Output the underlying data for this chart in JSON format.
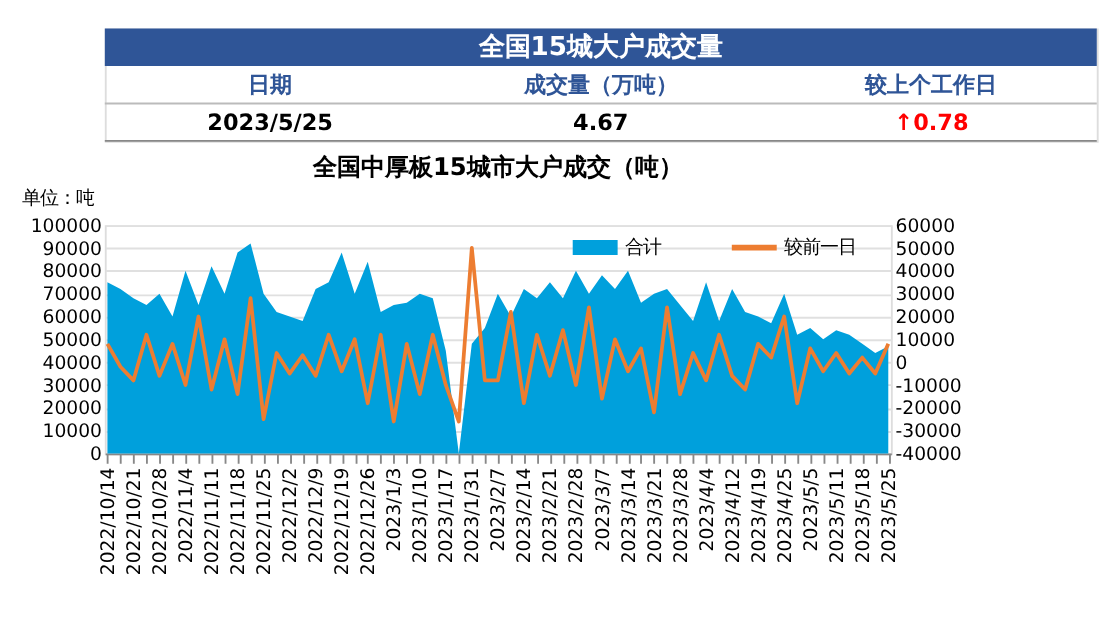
{
  "chart_data": [
    {
      "type": "other",
      "title": "全国15城大户成交量",
      "color": "#2f5597",
      "annotations": [
        "日期",
        "成交量（万吨）",
        "较上个工作日",
        "2023/5/25",
        "4.67",
        "↑0.78"
      ],
      "colors": [
        "#2f5597",
        "#2f5597",
        "#2f5597",
        "#000000",
        "#000000",
        "#ff0000"
      ]
    },
    {
      "type": "area",
      "title": "全国中厚板15城市大户成交（吨）",
      "ylabel": "单位：吨",
      "categories": [
        "2022/10/14",
        null,
        "2022/10/21",
        null,
        "2022/10/28",
        null,
        "2022/11/4",
        null,
        "2022/11/11",
        null,
        "2022/11/18",
        null,
        "2022/11/25",
        null,
        "2022/12/2",
        null,
        "2022/12/9",
        null,
        "2022/12/19",
        null,
        "2022/12/26",
        null,
        "2023/1/3",
        null,
        "2023/1/10",
        null,
        "2023/1/17",
        null,
        "2023/1/31",
        null,
        "2023/2/7",
        null,
        "2023/2/14",
        null,
        "2023/2/21",
        null,
        "2023/2/28",
        null,
        "2023/3/7",
        null,
        "2023/3/14",
        null,
        "2023/3/21",
        null,
        "2023/3/28",
        null,
        "2023/4/4",
        null,
        "2023/4/12",
        null,
        "2023/4/19",
        null,
        "2023/4/25",
        null,
        "2023/5/5",
        null,
        "2023/5/11",
        null,
        "2023/5/18",
        null,
        "2023/5/25"
      ],
      "series": [
        {
          "name": "合计",
          "type": "area",
          "color": "#00a0dc",
          "values": [
            75000,
            72000,
            68000,
            65000,
            70000,
            60000,
            80000,
            65000,
            82000,
            70000,
            88000,
            92000,
            70000,
            62000,
            60000,
            58000,
            72000,
            75000,
            88000,
            70000,
            84000,
            62000,
            65000,
            66000,
            70000,
            68000,
            45000,
            0,
            48000,
            55000,
            70000,
            60000,
            72000,
            68000,
            75000,
            68000,
            80000,
            70000,
            78000,
            72000,
            80000,
            66000,
            70000,
            72000,
            65000,
            58000,
            75000,
            58000,
            72000,
            62000,
            60000,
            57000,
            70000,
            52000,
            55000,
            50000,
            54000,
            52000,
            48000,
            44000,
            47000
          ]
        },
        {
          "name": "较前一日",
          "type": "line",
          "axis": "y2",
          "color": "#ed7d31",
          "values": [
            8000,
            -2000,
            -8000,
            12000,
            -6000,
            8000,
            -10000,
            20000,
            -12000,
            10000,
            -14000,
            28000,
            -25000,
            4000,
            -5000,
            3000,
            -6000,
            12000,
            -4000,
            10000,
            -18000,
            12000,
            -26000,
            8000,
            -14000,
            12000,
            -10000,
            -26000,
            50000,
            -8000,
            -8000,
            22000,
            -18000,
            12000,
            -6000,
            14000,
            -10000,
            24000,
            -16000,
            10000,
            -4000,
            6000,
            -22000,
            24000,
            -14000,
            4000,
            -8000,
            12000,
            -6000,
            -12000,
            8000,
            2000,
            20000,
            -18000,
            6000,
            -4000,
            4000,
            -5000,
            2000,
            -5000,
            8000
          ]
        }
      ],
      "ylim": [
        0,
        100000
      ],
      "yticks": [
        0,
        10000,
        20000,
        30000,
        40000,
        50000,
        60000,
        70000,
        80000,
        90000,
        100000
      ],
      "y2lim": [
        -40000,
        60000
      ],
      "y2ticks": [
        -40000,
        -30000,
        -20000,
        -10000,
        0,
        10000,
        20000,
        30000,
        40000,
        50000,
        60000
      ],
      "grid": "y",
      "legend": "top right"
    }
  ]
}
